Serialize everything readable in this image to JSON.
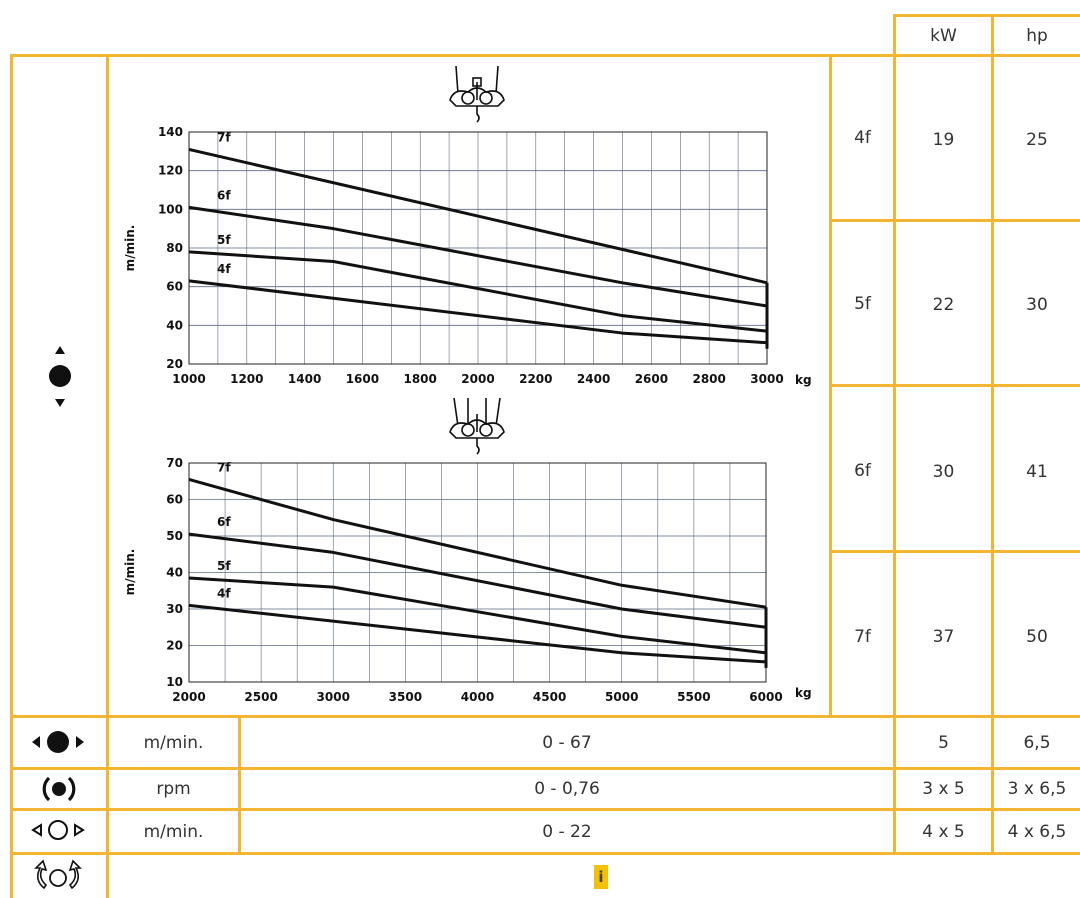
{
  "header": {
    "kw": "kW",
    "hp": "hp"
  },
  "power_table": [
    {
      "model": "4f",
      "kw": "19",
      "hp": "25"
    },
    {
      "model": "5f",
      "kw": "22",
      "hp": "30"
    },
    {
      "model": "6f",
      "kw": "30",
      "hp": "41"
    },
    {
      "model": "7f",
      "kw": "37",
      "hp": "50"
    }
  ],
  "motion_rows": [
    {
      "icon": "travel-icon",
      "unit": "m/min.",
      "range": "0 - 67",
      "kw": "5",
      "hp": "6,5"
    },
    {
      "icon": "slewing-icon",
      "unit": "rpm",
      "range": "0 - 0,76",
      "kw": "3 x 5",
      "hp": "3 x 6,5"
    },
    {
      "icon": "trolley-travel-icon",
      "unit": "m/min.",
      "range": "0 - 22",
      "kw": "4 x 5",
      "hp": "4 x 6,5"
    }
  ],
  "info_row": {
    "icon": "luffing-icon",
    "badge": "i"
  },
  "left_icon": "hoist-up-down-icon",
  "colors": {
    "grid": "#f2b632",
    "badge": "#f5c000",
    "curve": "#111111"
  },
  "chart_data": [
    {
      "type": "line",
      "reeving_icon": "two-fall-hook-icon",
      "xlabel": "kg",
      "ylabel": "m/min.",
      "xlim": [
        1000,
        3000
      ],
      "ylim": [
        20,
        140
      ],
      "xticks": [
        "1000",
        "1200",
        "1400",
        "1600",
        "1800",
        "2000",
        "2200",
        "2400",
        "2600",
        "2800",
        "3000"
      ],
      "yticks": [
        "20",
        "40",
        "60",
        "80",
        "100",
        "120",
        "140"
      ],
      "grid": true,
      "series": [
        {
          "name": "7f",
          "x": [
            1000,
            3000
          ],
          "y": [
            131,
            62
          ]
        },
        {
          "name": "6f",
          "x": [
            1000,
            1500,
            2500,
            3000
          ],
          "y": [
            101,
            90,
            62,
            50
          ]
        },
        {
          "name": "5f",
          "x": [
            1000,
            1500,
            2500,
            3000
          ],
          "y": [
            78,
            73,
            45,
            37
          ]
        },
        {
          "name": "4f",
          "x": [
            1000,
            2500,
            3000
          ],
          "y": [
            63,
            36,
            31
          ]
        }
      ]
    },
    {
      "type": "line",
      "reeving_icon": "four-fall-hook-icon",
      "xlabel": "kg",
      "ylabel": "m/min.",
      "xlim": [
        2000,
        6000
      ],
      "ylim": [
        10,
        70
      ],
      "xticks": [
        "2000",
        "2500",
        "3000",
        "3500",
        "4000",
        "4500",
        "5000",
        "5500",
        "6000"
      ],
      "yticks": [
        "10",
        "20",
        "30",
        "40",
        "50",
        "60",
        "70"
      ],
      "grid": true,
      "series": [
        {
          "name": "7f",
          "x": [
            2000,
            3000,
            5000,
            6000
          ],
          "y": [
            65.5,
            54.5,
            36.5,
            30.5
          ]
        },
        {
          "name": "6f",
          "x": [
            2000,
            3000,
            5000,
            6000
          ],
          "y": [
            50.5,
            45.5,
            30,
            25
          ]
        },
        {
          "name": "5f",
          "x": [
            2000,
            3000,
            5000,
            6000
          ],
          "y": [
            38.5,
            36,
            22.5,
            18
          ]
        },
        {
          "name": "4f",
          "x": [
            2000,
            5000,
            6000
          ],
          "y": [
            31,
            18,
            15.5
          ]
        }
      ]
    }
  ]
}
